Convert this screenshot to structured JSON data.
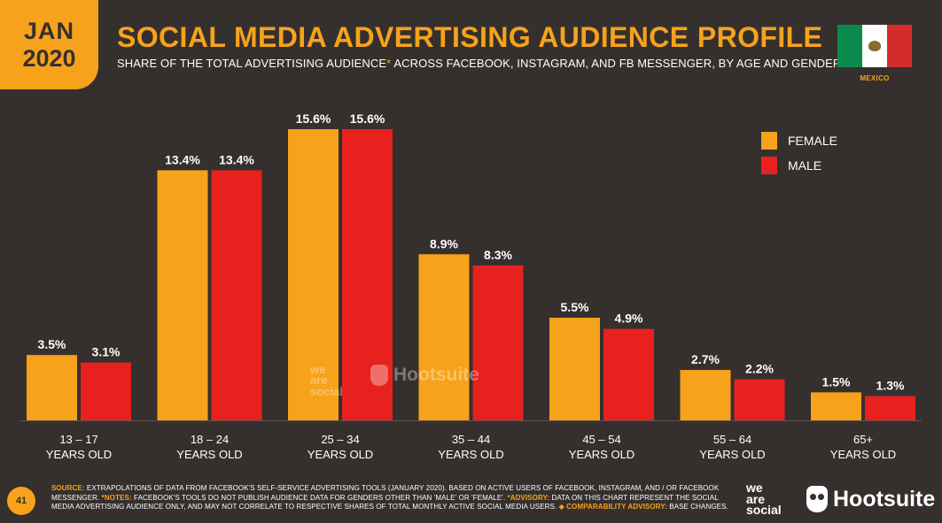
{
  "header": {
    "date_month": "JAN",
    "date_year": "2020",
    "title": "SOCIAL MEDIA ADVERTISING AUDIENCE PROFILE",
    "subtitle_main": "SHARE OF THE TOTAL ADVERTISING AUDIENCE",
    "subtitle_asterisk": "*",
    "subtitle_rest": " ACROSS FACEBOOK, INSTAGRAM, AND FB MESSENGER, BY AGE AND GENDER",
    "country": "MEXICO"
  },
  "colors": {
    "female": "#f7a21b",
    "male": "#e8211f",
    "background": "#35302e",
    "accent": "#f7a21b"
  },
  "chart_data": {
    "type": "bar",
    "title": "SOCIAL MEDIA ADVERTISING AUDIENCE PROFILE",
    "categories": [
      [
        "13 – 17",
        "YEARS OLD"
      ],
      [
        "18 – 24",
        "YEARS OLD"
      ],
      [
        "25 – 34",
        "YEARS OLD"
      ],
      [
        "35 – 44",
        "YEARS OLD"
      ],
      [
        "45 – 54",
        "YEARS OLD"
      ],
      [
        "55 – 64",
        "YEARS OLD"
      ],
      [
        "65+",
        "YEARS OLD"
      ]
    ],
    "series": [
      {
        "name": "FEMALE",
        "values": [
          3.5,
          13.4,
          15.6,
          8.9,
          5.5,
          2.7,
          1.5
        ],
        "labels": [
          "3.5%",
          "13.4%",
          "15.6%",
          "8.9%",
          "5.5%",
          "2.7%",
          "1.5%"
        ]
      },
      {
        "name": "MALE",
        "values": [
          3.1,
          13.4,
          15.6,
          8.3,
          4.9,
          2.2,
          1.3
        ],
        "labels": [
          "3.1%",
          "13.4%",
          "15.6%",
          "8.3%",
          "4.9%",
          "2.2%",
          "1.3%"
        ]
      }
    ],
    "ylim": [
      0,
      15.6
    ],
    "grid": false,
    "legend_position": "top-right"
  },
  "watermark": {
    "was_line1": "we",
    "was_line2": "are",
    "was_line3": "social",
    "hootsuite": "Hootsuite"
  },
  "footer": {
    "page_number": "41",
    "source_key": "SOURCE:",
    "source_text": " EXTRAPOLATIONS OF DATA FROM FACEBOOK'S SELF-SERVICE ADVERTISING TOOLS (JANUARY 2020). BASED ON ACTIVE USERS OF FACEBOOK, INSTAGRAM, AND / OR FACEBOOK MESSENGER. ",
    "notes_key": "*NOTES:",
    "notes_text": " FACEBOOK'S TOOLS DO NOT PUBLISH AUDIENCE DATA FOR GENDERS OTHER THAN 'MALE' OR 'FEMALE'. ",
    "advisory_key": "*ADVISORY:",
    "advisory_text": " DATA ON THIS CHART REPRESENT THE SOCIAL MEDIA ADVERTISING AUDIENCE ONLY, AND MAY NOT CORRELATE TO RESPECTIVE SHARES OF TOTAL MONTHLY ACTIVE SOCIAL MEDIA USERS. ",
    "comparability_key": "◆ COMPARABILITY ADVISORY:",
    "comparability_text": " BASE CHANGES.",
    "brand_was_line1": "we",
    "brand_was_line2": "are",
    "brand_was_line3": "social",
    "brand_hootsuite": "Hootsuite"
  }
}
